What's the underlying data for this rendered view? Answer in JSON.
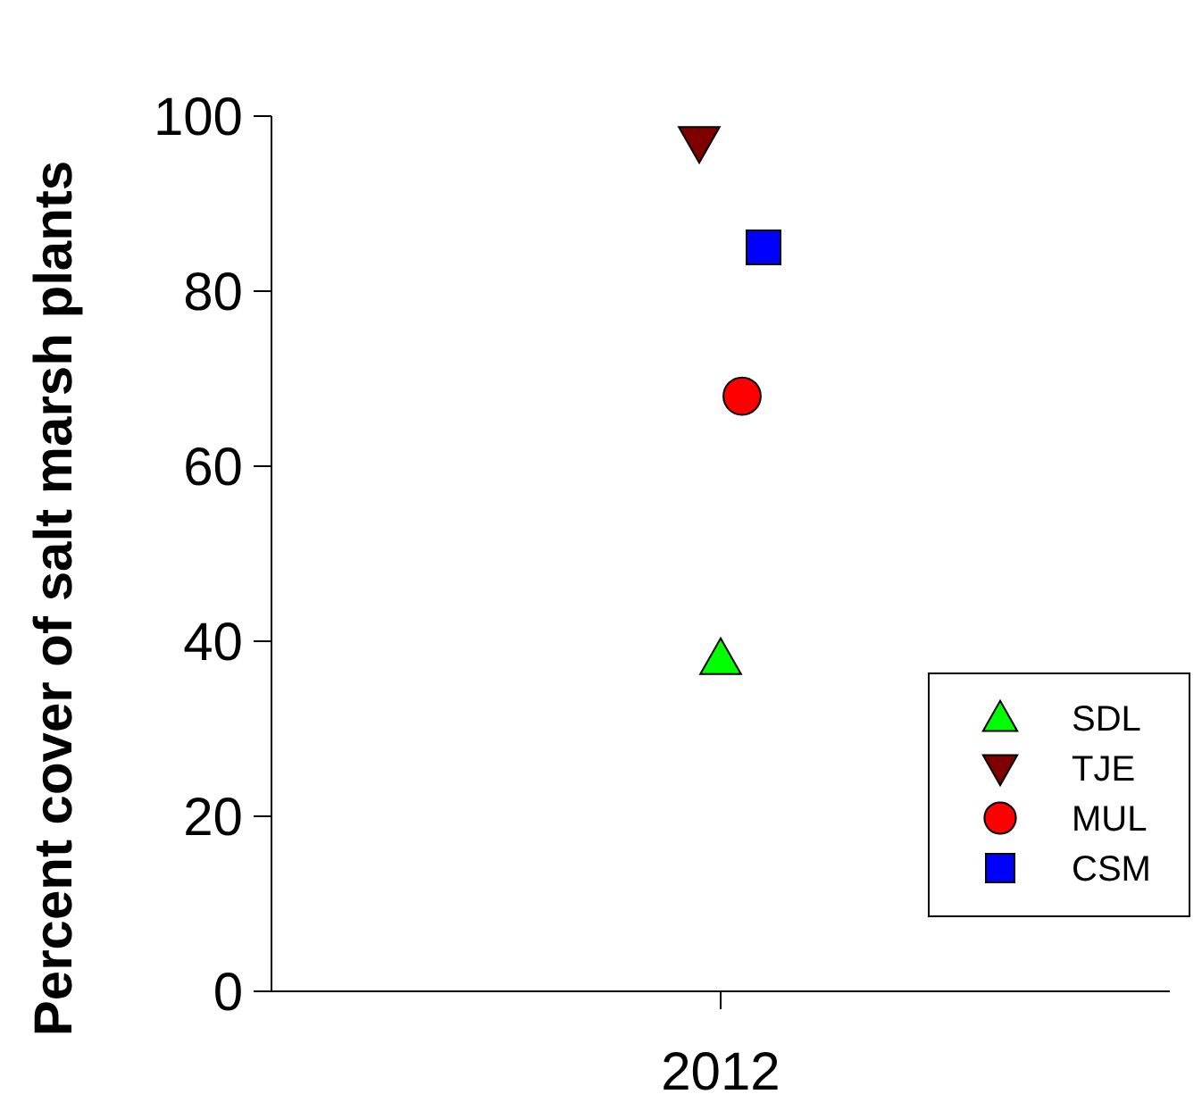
{
  "chart_data": {
    "type": "scatter",
    "ylabel": "Percent cover of salt marsh plants",
    "categories": [
      "2012"
    ],
    "ylim": [
      0,
      100
    ],
    "yticks": [
      0,
      20,
      40,
      60,
      80,
      100
    ],
    "grid": false,
    "legend": "bottom right",
    "series": [
      {
        "name": "SDL",
        "color": "#00ff00",
        "marker": "triangle",
        "values": [
          38
        ]
      },
      {
        "name": "TJE",
        "color": "#800000",
        "marker": "triangle-down",
        "values": [
          97
        ]
      },
      {
        "name": "MUL",
        "color": "#ff0000",
        "marker": "circle",
        "values": [
          68
        ]
      },
      {
        "name": "CSM",
        "color": "#0000ff",
        "marker": "square",
        "values": [
          85
        ]
      }
    ]
  }
}
